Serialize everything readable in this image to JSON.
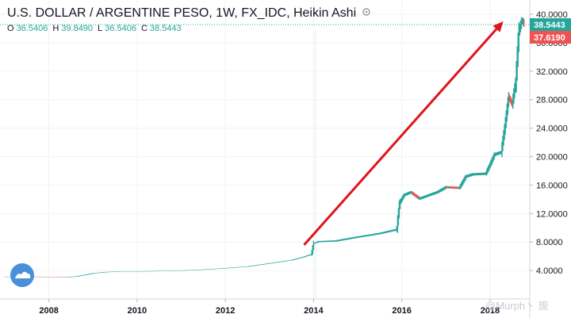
{
  "header": {
    "title": "U.S. DOLLAR / ARGENTINE PESO, 1W, FX_IDC, Heikin Ashi",
    "ohlc": [
      {
        "key": "O",
        "value": "36.5406"
      },
      {
        "key": "H",
        "value": "39.8490"
      },
      {
        "key": "L",
        "value": "36.5406"
      },
      {
        "key": "C",
        "value": "38.5443"
      }
    ]
  },
  "badges": {
    "last_price": "38.5443",
    "other_price": "37.6190"
  },
  "watermark": "@Murph丶 旎",
  "colors": {
    "up": "#26a69a",
    "down": "#ef5350",
    "arrow": "#e0141b",
    "axis_text": "#131722"
  },
  "chart_data": {
    "type": "line",
    "title": "U.S. DOLLAR / ARGENTINE PESO, 1W, FX_IDC, Heikin Ashi",
    "xlabel": "",
    "ylabel": "",
    "x_ticks": [
      "2008",
      "2010",
      "2012",
      "2014",
      "2016",
      "2018"
    ],
    "y_ticks": [
      "4.0000",
      "8.0000",
      "12.0000",
      "16.0000",
      "20.0000",
      "24.0000",
      "28.0000",
      "32.0000",
      "36.0000",
      "40.0000"
    ],
    "ylim": [
      0,
      42
    ],
    "xlim": [
      2007.0,
      2018.9
    ],
    "grid": true,
    "series": [
      {
        "values": [
          [
            2007.0,
            3.1
          ],
          [
            2007.5,
            3.12
          ],
          [
            2008.0,
            3.1
          ],
          [
            2008.4,
            3.05
          ],
          [
            2008.6,
            3.15
          ],
          [
            2008.8,
            3.35
          ],
          [
            2009.0,
            3.6
          ],
          [
            2009.3,
            3.78
          ],
          [
            2009.6,
            3.85
          ],
          [
            2010.0,
            3.86
          ],
          [
            2010.5,
            3.92
          ],
          [
            2011.0,
            3.98
          ],
          [
            2011.5,
            4.12
          ],
          [
            2012.0,
            4.32
          ],
          [
            2012.5,
            4.55
          ],
          [
            2013.0,
            5.0
          ],
          [
            2013.5,
            5.45
          ],
          [
            2013.8,
            5.95
          ],
          [
            2013.95,
            6.3
          ],
          [
            2014.0,
            7.8
          ],
          [
            2014.1,
            8.05
          ],
          [
            2014.5,
            8.15
          ],
          [
            2015.0,
            8.7
          ],
          [
            2015.5,
            9.2
          ],
          [
            2015.88,
            9.75
          ],
          [
            2015.95,
            13.5
          ],
          [
            2016.05,
            14.6
          ],
          [
            2016.2,
            15.0
          ],
          [
            2016.4,
            14.1
          ],
          [
            2016.8,
            15.0
          ],
          [
            2017.0,
            15.7
          ],
          [
            2017.3,
            15.6
          ],
          [
            2017.45,
            17.2
          ],
          [
            2017.6,
            17.5
          ],
          [
            2017.9,
            17.6
          ],
          [
            2018.0,
            18.9
          ],
          [
            2018.1,
            20.3
          ],
          [
            2018.25,
            20.6
          ],
          [
            2018.33,
            24.0
          ],
          [
            2018.42,
            28.4
          ],
          [
            2018.5,
            27.4
          ],
          [
            2018.58,
            30.5
          ],
          [
            2018.65,
            37.5
          ],
          [
            2018.72,
            39.2
          ],
          [
            2018.78,
            38.54
          ]
        ]
      }
    ],
    "annotations": [
      {
        "type": "arrow",
        "from": [
          2013.8,
          7.7
        ],
        "to": [
          2018.3,
          39.0
        ]
      }
    ],
    "last_value": 38.5443
  }
}
